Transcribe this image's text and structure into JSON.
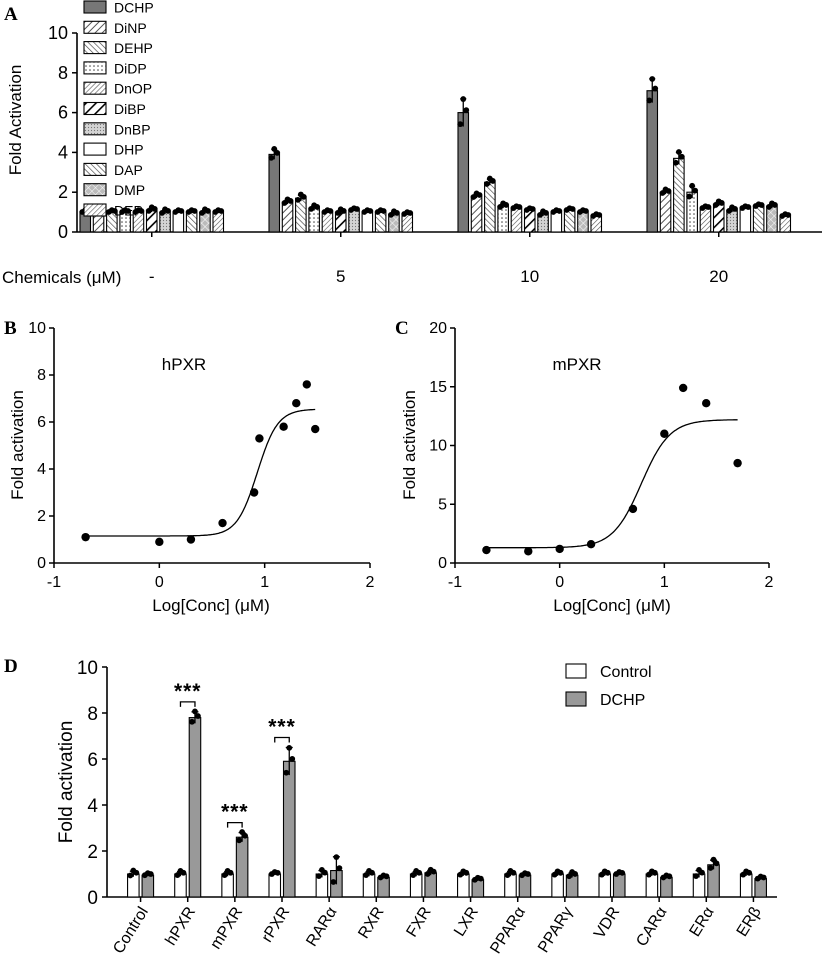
{
  "panel_labels": {
    "a": "A",
    "b": "B",
    "c": "C",
    "d": "D"
  },
  "chart_data": [
    {
      "id": "A",
      "type": "bar",
      "ylabel": "Fold Activation",
      "xlabel": "Chemicals (μM)",
      "ylim": [
        0,
        10
      ],
      "yticks": [
        0,
        2,
        4,
        6,
        8,
        10
      ],
      "groups": [
        "-",
        "5",
        "10",
        "20"
      ],
      "series": [
        {
          "name": "DCHP",
          "fill": "#777777",
          "pattern": "solid",
          "values": [
            1.0,
            3.9,
            6.0,
            7.1
          ],
          "errors": [
            0.05,
            0.25,
            0.7,
            0.6
          ]
        },
        {
          "name": "DiNP",
          "fill": "#ffffff",
          "pattern": "diag-right",
          "values": [
            1.0,
            1.5,
            1.8,
            2.0
          ],
          "errors": [
            0.05,
            0.1,
            0.1,
            0.1
          ]
        },
        {
          "name": "DEHP",
          "fill": "#ffffff",
          "pattern": "diag-left",
          "values": [
            1.0,
            1.7,
            2.5,
            3.7
          ],
          "errors": [
            0.05,
            0.15,
            0.15,
            0.3
          ]
        },
        {
          "name": "DiDP",
          "fill": "#ffffff",
          "pattern": "dots",
          "values": [
            1.0,
            1.2,
            1.3,
            2.0
          ],
          "errors": [
            0.05,
            0.1,
            0.1,
            0.3
          ]
        },
        {
          "name": "DnOP",
          "fill": "#ffffff",
          "pattern": "diag-dense",
          "values": [
            1.0,
            1.0,
            1.2,
            1.2
          ],
          "errors": [
            0.05,
            0.05,
            0.05,
            0.05
          ]
        },
        {
          "name": "DiBP",
          "fill": "#ffffff",
          "pattern": "diag-bold",
          "values": [
            1.1,
            1.0,
            1.1,
            1.4
          ],
          "errors": [
            0.1,
            0.1,
            0.05,
            0.1
          ]
        },
        {
          "name": "DnBP",
          "fill": "#dddddd",
          "pattern": "fine-dots",
          "values": [
            1.0,
            1.1,
            0.9,
            1.1
          ],
          "errors": [
            0.1,
            0.05,
            0.1,
            0.1
          ]
        },
        {
          "name": "DHP",
          "fill": "#ffffff",
          "pattern": "solid",
          "values": [
            1.0,
            1.0,
            1.0,
            1.2
          ],
          "errors": [
            0.05,
            0.05,
            0.05,
            0.05
          ]
        },
        {
          "name": "DAP",
          "fill": "#ffffff",
          "pattern": "diag-left",
          "values": [
            1.0,
            1.0,
            1.1,
            1.3
          ],
          "errors": [
            0.05,
            0.05,
            0.05,
            0.05
          ]
        },
        {
          "name": "DMP",
          "fill": "#bbbbbb",
          "pattern": "cross",
          "values": [
            1.0,
            0.9,
            1.0,
            1.3
          ],
          "errors": [
            0.1,
            0.1,
            0.05,
            0.1
          ]
        },
        {
          "name": "DEP",
          "fill": "#ffffff",
          "pattern": "diag-dense",
          "values": [
            1.0,
            0.9,
            0.8,
            0.8
          ],
          "errors": [
            0.05,
            0.05,
            0.05,
            0.05
          ]
        }
      ]
    },
    {
      "id": "B",
      "type": "scatter",
      "title": "hPXR",
      "xlabel": "Log[Conc] (μM)",
      "ylabel": "Fold activation",
      "xlim": [
        -1,
        2
      ],
      "ylim": [
        0,
        10
      ],
      "xticks": [
        "-1",
        "0",
        "1",
        "2"
      ],
      "yticks": [
        "0",
        "2",
        "4",
        "6",
        "8",
        "10"
      ],
      "points": [
        [
          -0.7,
          1.1
        ],
        [
          0.0,
          0.9
        ],
        [
          0.3,
          1.0
        ],
        [
          0.6,
          1.7
        ],
        [
          0.9,
          3.0
        ],
        [
          0.95,
          5.3
        ],
        [
          1.18,
          5.8
        ],
        [
          1.3,
          6.8
        ],
        [
          1.4,
          7.6
        ],
        [
          1.48,
          5.7
        ]
      ],
      "fit": {
        "bottom": 1.15,
        "top": 6.55,
        "logEC50": 0.93,
        "hill": 4.5
      }
    },
    {
      "id": "C",
      "type": "scatter",
      "title": "mPXR",
      "xlabel": "Log[Conc] (μM)",
      "ylabel": "Fold activation",
      "xlim": [
        -1,
        2
      ],
      "ylim": [
        0,
        20
      ],
      "xticks": [
        "-1",
        "0",
        "1",
        "2"
      ],
      "yticks": [
        "0",
        "5",
        "10",
        "15",
        "20"
      ],
      "points": [
        [
          -0.7,
          1.1
        ],
        [
          -0.3,
          1.0
        ],
        [
          0.0,
          1.2
        ],
        [
          0.3,
          1.6
        ],
        [
          0.7,
          4.6
        ],
        [
          1.0,
          11.0
        ],
        [
          1.18,
          14.9
        ],
        [
          1.4,
          13.6
        ],
        [
          1.7,
          8.5
        ]
      ],
      "fit": {
        "bottom": 1.3,
        "top": 12.2,
        "logEC50": 0.78,
        "hill": 3.2
      }
    },
    {
      "id": "D",
      "type": "bar",
      "ylabel": "Fold activation",
      "ylim": [
        0,
        10
      ],
      "yticks": [
        "0",
        "2",
        "4",
        "6",
        "8",
        "10"
      ],
      "categories": [
        "Control",
        "hPXR",
        "mPXR",
        "rPXR",
        "RARα",
        "RXR",
        "FXR",
        "LXR",
        "PPARα",
        "PPARγ",
        "VDR",
        "CARα",
        "ERα",
        "ERβ"
      ],
      "series": [
        {
          "name": "Control",
          "fill": "#ffffff",
          "values": [
            1.0,
            1.0,
            1.0,
            1.0,
            1.0,
            1.0,
            1.0,
            1.0,
            1.0,
            1.0,
            1.0,
            1.0,
            1.0,
            1.0
          ],
          "errors": [
            0.12,
            0.1,
            0.1,
            0.05,
            0.15,
            0.1,
            0.1,
            0.08,
            0.1,
            0.08,
            0.08,
            0.08,
            0.15,
            0.08
          ]
        },
        {
          "name": "DCHP",
          "fill": "#999999",
          "values": [
            0.95,
            7.8,
            2.6,
            5.9,
            1.15,
            0.85,
            1.05,
            0.75,
            0.95,
            0.95,
            1.0,
            0.85,
            1.4,
            0.8
          ],
          "errors": [
            0.05,
            0.25,
            0.2,
            0.6,
            0.6,
            0.05,
            0.1,
            0.05,
            0.05,
            0.1,
            0.05,
            0.05,
            0.2,
            0.05
          ]
        }
      ],
      "significance": [
        {
          "category": "hPXR",
          "label": "***"
        },
        {
          "category": "mPXR",
          "label": "***"
        },
        {
          "category": "rPXR",
          "label": "***"
        }
      ]
    }
  ]
}
